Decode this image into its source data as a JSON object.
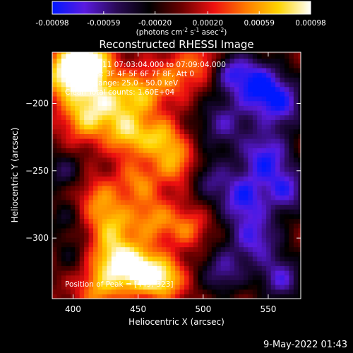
{
  "chart_data": [
    {
      "type": "colorbar",
      "colormap": "blue-purple-black-red-orange-yellow-white",
      "colormap_stops": [
        "#0018ff",
        "#5a1ae0",
        "#2a0a55",
        "#000000",
        "#6a0000",
        "#ee1010",
        "#ff7a00",
        "#ffd400",
        "#ffffff"
      ],
      "range": [
        -0.00098,
        0.00098
      ],
      "tick_values": [
        -0.00098,
        -0.00059,
        -0.0002,
        0.0002,
        0.00059,
        0.00098
      ],
      "tick_labels": [
        "-0.00098",
        "-0.00059",
        "-0.00020",
        "0.00020",
        "0.00059",
        "0.00098"
      ],
      "units_label": "(photons cm",
      "units_sup1": "-2",
      "units_mid": " s",
      "units_sup2": "-1",
      "units_end": " asec",
      "units_sup3": "-2",
      "units_close": ")"
    },
    {
      "type": "heatmap",
      "title": "Reconstructed RHESSI Image",
      "xlabel": "Heliocentric X (arcsec)",
      "ylabel": "Heliocentric Y (arcsec)",
      "xlim": [
        384,
        575
      ],
      "ylim": [
        -345,
        -162
      ],
      "xticks": [
        400,
        450,
        500,
        550
      ],
      "yticks": [
        -200,
        -250,
        -300
      ],
      "annotations": [
        "18-Feb-2011 07:03:04.000 to 07:09:04.000",
        "Detectors: 3F 4F 5F 6F 7F 8F, Att 0",
        "Energy Range: 25.0 - 50.0 keV",
        "Clean    Total counts: 1.60E+04",
        "Position of Peak = [449,-323]"
      ],
      "peak": {
        "x": 449,
        "y": -323
      },
      "blobs": [
        {
          "x": 398,
          "y": -178,
          "amp": 1.0,
          "s": 14
        },
        {
          "x": 412,
          "y": -168,
          "amp": 0.9,
          "s": 12
        },
        {
          "x": 425,
          "y": -198,
          "amp": 0.65,
          "s": 14
        },
        {
          "x": 452,
          "y": -192,
          "amp": 0.6,
          "s": 12
        },
        {
          "x": 478,
          "y": -180,
          "amp": 0.45,
          "s": 12
        },
        {
          "x": 500,
          "y": -168,
          "amp": 0.4,
          "s": 10
        },
        {
          "x": 408,
          "y": -212,
          "amp": 0.55,
          "s": 12
        },
        {
          "x": 442,
          "y": -222,
          "amp": 0.7,
          "s": 12
        },
        {
          "x": 468,
          "y": -226,
          "amp": 0.65,
          "s": 11
        },
        {
          "x": 480,
          "y": -245,
          "amp": 0.55,
          "s": 11
        },
        {
          "x": 450,
          "y": -258,
          "amp": 0.5,
          "s": 11
        },
        {
          "x": 420,
          "y": -270,
          "amp": 0.45,
          "s": 11
        },
        {
          "x": 430,
          "y": -290,
          "amp": 0.6,
          "s": 12
        },
        {
          "x": 462,
          "y": -286,
          "amp": 0.55,
          "s": 12
        },
        {
          "x": 488,
          "y": -292,
          "amp": 0.45,
          "s": 10
        },
        {
          "x": 430,
          "y": -315,
          "amp": 0.65,
          "s": 12
        },
        {
          "x": 449,
          "y": -323,
          "amp": 1.0,
          "s": 12
        },
        {
          "x": 470,
          "y": -330,
          "amp": 0.8,
          "s": 11
        },
        {
          "x": 420,
          "y": -338,
          "amp": 0.55,
          "s": 12
        },
        {
          "x": 392,
          "y": -250,
          "amp": -0.45,
          "s": 10
        },
        {
          "x": 392,
          "y": -285,
          "amp": -0.3,
          "s": 10
        },
        {
          "x": 398,
          "y": -312,
          "amp": -0.25,
          "s": 10
        },
        {
          "x": 515,
          "y": -215,
          "amp": -0.6,
          "s": 14
        },
        {
          "x": 540,
          "y": -185,
          "amp": -0.85,
          "s": 14
        },
        {
          "x": 560,
          "y": -200,
          "amp": -0.75,
          "s": 14
        },
        {
          "x": 548,
          "y": -240,
          "amp": -0.85,
          "s": 14
        },
        {
          "x": 565,
          "y": -265,
          "amp": -0.7,
          "s": 12
        },
        {
          "x": 530,
          "y": -270,
          "amp": -0.8,
          "s": 13
        },
        {
          "x": 505,
          "y": -255,
          "amp": -0.5,
          "s": 11
        },
        {
          "x": 540,
          "y": -300,
          "amp": -0.75,
          "s": 14
        },
        {
          "x": 515,
          "y": -325,
          "amp": -0.6,
          "s": 12
        },
        {
          "x": 560,
          "y": -330,
          "amp": -0.7,
          "s": 12
        },
        {
          "x": 520,
          "y": -175,
          "amp": -0.55,
          "s": 10
        }
      ]
    }
  ],
  "footer": {
    "timestamp": "9-May-2022 01:43"
  }
}
